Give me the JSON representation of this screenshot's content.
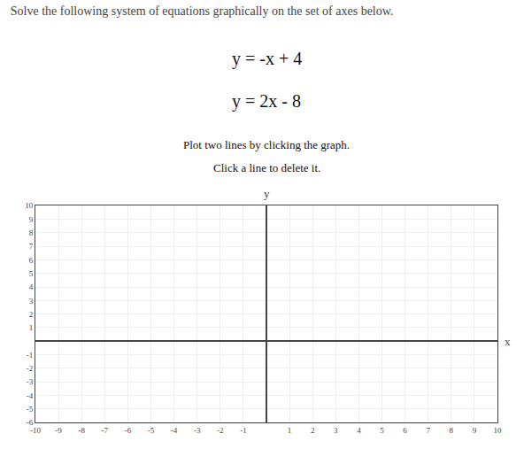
{
  "chart_data": {
    "type": "scatter",
    "title": "Solve the following system of equations graphically on the set of axes below.",
    "annotations": [
      "y = -x + 4",
      "y = 2x - 8",
      "Plot two lines by clicking the graph.",
      "Click a line to delete it."
    ],
    "xlabel": "x",
    "ylabel": "y",
    "series": [],
    "xlim": [
      -10,
      10
    ],
    "ylim": [
      -6,
      10
    ],
    "xticks": [
      -10,
      -9,
      -8,
      -7,
      -6,
      -5,
      -4,
      -3,
      -2,
      -1,
      1,
      2,
      3,
      4,
      5,
      6,
      7,
      8,
      9,
      10
    ],
    "yticks": [
      -6,
      -5,
      -4,
      -3,
      -2,
      -1,
      1,
      2,
      3,
      4,
      5,
      6,
      7,
      8,
      9,
      10
    ],
    "grid": true
  }
}
